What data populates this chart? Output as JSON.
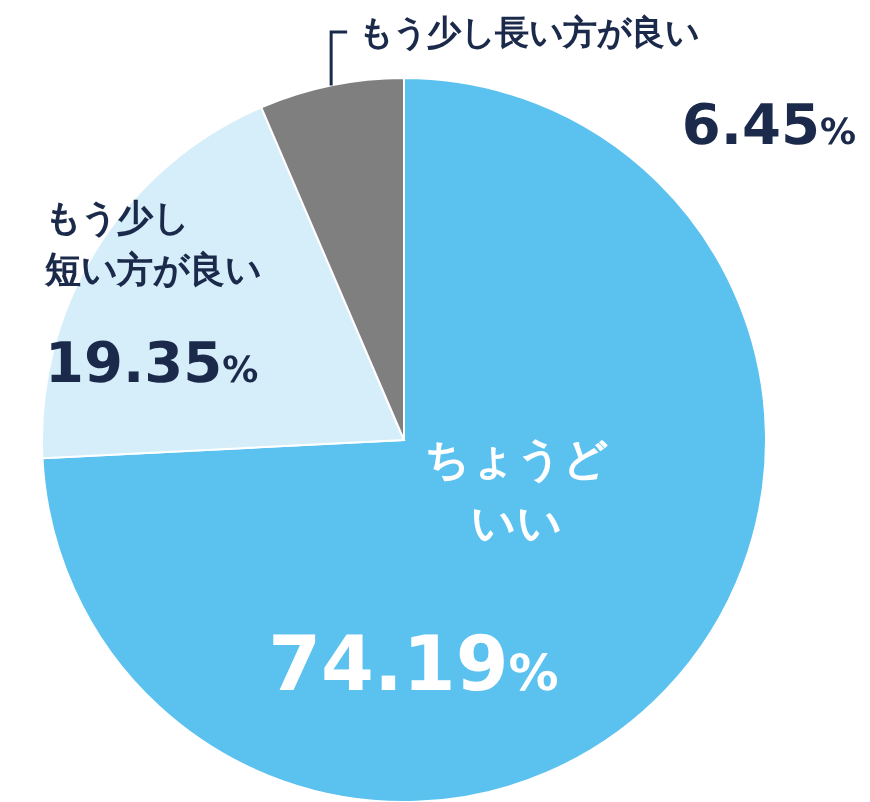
{
  "chart_data": {
    "type": "pie",
    "categories": [
      "ちょうどいい",
      "もう少し短い方が良い",
      "もう少し長い方が良い"
    ],
    "values": [
      74.19,
      19.35,
      6.45
    ],
    "colors": [
      "#5bc2f0",
      "#d5eefa",
      "#7f7f7f"
    ],
    "value_labels": [
      "74.19%",
      "19.35%",
      "6.45%"
    ]
  }
}
